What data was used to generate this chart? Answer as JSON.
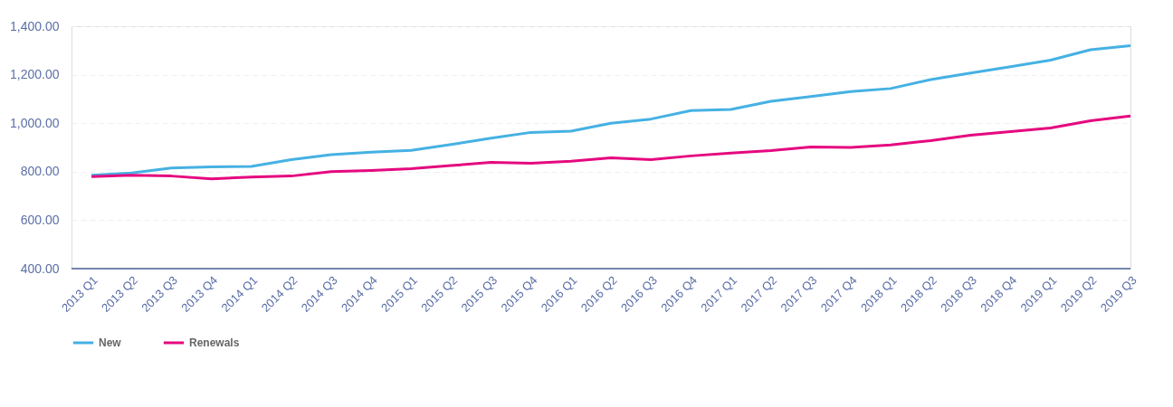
{
  "chart_data": {
    "type": "line",
    "categories": [
      "2013 Q1",
      "2013 Q2",
      "2013 Q3",
      "2013 Q4",
      "2014 Q1",
      "2014 Q2",
      "2014 Q3",
      "2014 Q4",
      "2015 Q1",
      "2015 Q2",
      "2015 Q3",
      "2015 Q4",
      "2016 Q1",
      "2016 Q2",
      "2016 Q3",
      "2016 Q4",
      "2017 Q1",
      "2017 Q2",
      "2017 Q3",
      "2017 Q4",
      "2018 Q1",
      "2018 Q2",
      "2018 Q3",
      "2018 Q4",
      "2019 Q1",
      "2019 Q2",
      "2019 Q3"
    ],
    "series": [
      {
        "name": "New",
        "color": "#45b1e3",
        "values": [
          785,
          795,
          815,
          820,
          822,
          850,
          870,
          880,
          888,
          912,
          938,
          962,
          967,
          1000,
          1017,
          1052,
          1057,
          1090,
          1110,
          1130,
          1143,
          1180,
          1207,
          1233,
          1260,
          1303,
          1320
        ]
      },
      {
        "name": "Renewals",
        "color": "#e5097f",
        "values": [
          780,
          785,
          782,
          770,
          778,
          782,
          800,
          805,
          812,
          825,
          838,
          835,
          843,
          857,
          850,
          865,
          877,
          887,
          902,
          900,
          910,
          928,
          950,
          965,
          980,
          1010,
          1030
        ]
      }
    ],
    "ylim": [
      400,
      1400
    ],
    "yticks": [
      {
        "value": 400,
        "label": "400.00"
      },
      {
        "value": 600,
        "label": "600.00"
      },
      {
        "value": 800,
        "label": "800.00"
      },
      {
        "value": 1000,
        "label": "1,000.00"
      },
      {
        "value": 1200,
        "label": "1,200.00"
      },
      {
        "value": 1400,
        "label": "1,400.00"
      }
    ],
    "grid": "y",
    "legend": "bottom",
    "marker": "none",
    "line_style": "solid"
  }
}
